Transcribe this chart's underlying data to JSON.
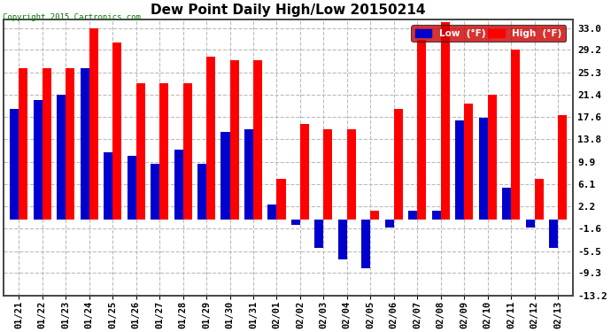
{
  "title": "Dew Point Daily High/Low 20150214",
  "copyright": "Copyright 2015 Cartronics.com",
  "yticks": [
    33.0,
    29.2,
    25.3,
    21.4,
    17.6,
    13.8,
    9.9,
    6.1,
    2.2,
    -1.6,
    -5.5,
    -9.3,
    -13.2
  ],
  "ylim": [
    -13.2,
    34.5
  ],
  "dates": [
    "01/21",
    "01/22",
    "01/23",
    "01/24",
    "01/25",
    "01/26",
    "01/27",
    "01/28",
    "01/29",
    "01/30",
    "01/31",
    "02/01",
    "02/02",
    "02/03",
    "02/04",
    "02/05",
    "02/06",
    "02/07",
    "02/08",
    "02/09",
    "02/10",
    "02/11",
    "02/12",
    "02/13"
  ],
  "high": [
    26.0,
    26.0,
    26.0,
    33.0,
    30.5,
    23.5,
    23.5,
    23.5,
    28.0,
    27.5,
    27.5,
    7.0,
    16.5,
    15.5,
    15.5,
    1.5,
    19.0,
    31.0,
    34.0,
    20.0,
    21.5,
    29.2,
    7.0,
    18.0
  ],
  "low": [
    19.0,
    20.5,
    21.5,
    26.0,
    11.5,
    11.0,
    9.5,
    12.0,
    9.5,
    15.0,
    15.5,
    2.5,
    -1.0,
    -5.0,
    -7.0,
    -8.5,
    -1.5,
    1.5,
    1.5,
    17.0,
    17.5,
    5.5,
    -1.5,
    -5.0
  ],
  "high_color": "#ff0000",
  "low_color": "#0000cc",
  "bg_color": "#ffffff",
  "legend_low_label": "Low  (°F)",
  "legend_high_label": "High  (°F)"
}
